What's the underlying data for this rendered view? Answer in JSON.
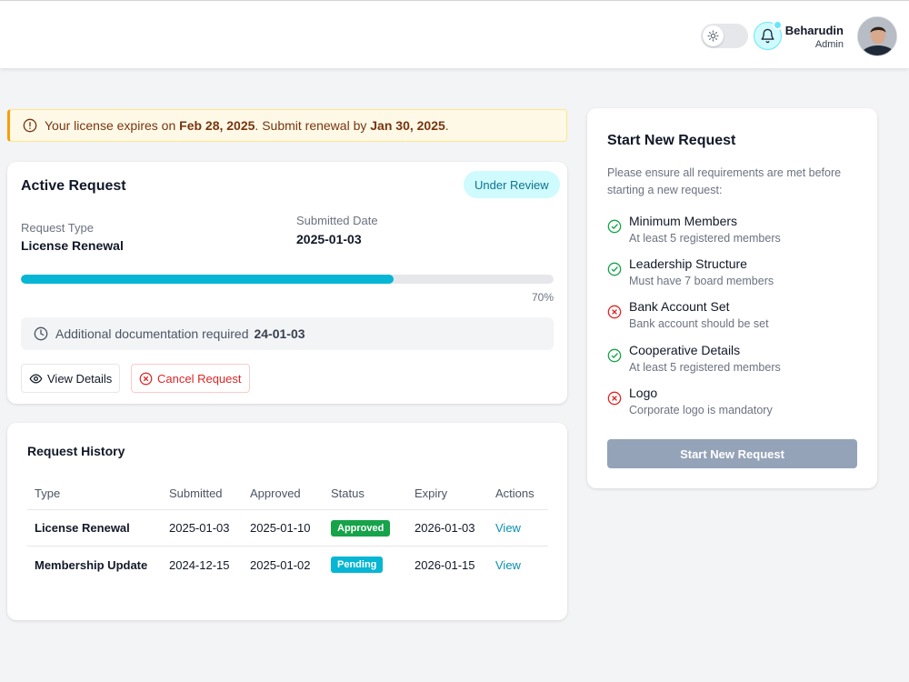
{
  "header": {
    "user_name": "Beharudin",
    "user_role": "Admin"
  },
  "alert": {
    "prefix": "Your license expires on ",
    "expiry_date": "Feb 28, 2025",
    "middle": ". Submit renewal by ",
    "renewal_date": "Jan 30, 2025",
    "suffix": "."
  },
  "active_request": {
    "title": "Active Request",
    "status": "Under Review",
    "request_type_label": "Request Type",
    "request_type": "License Renewal",
    "submitted_label": "Submitted Date",
    "submitted_date": "2025-01-03",
    "progress": 0.7,
    "progress_label": "70%",
    "note_text": "Additional documentation required",
    "note_date": "24-01-03",
    "view_details_label": "View Details",
    "cancel_label": "Cancel Request"
  },
  "history": {
    "title": "Request History",
    "columns": [
      "Type",
      "Submitted",
      "Approved",
      "Status",
      "Expiry",
      "Actions"
    ],
    "rows": [
      {
        "type": "License Renewal",
        "submitted": "2025-01-03",
        "approved": "2025-01-10",
        "status": "Approved",
        "status_color": "#16a34a",
        "expiry": "2026-01-03",
        "action": "View"
      },
      {
        "type": "Membership Update",
        "submitted": "2024-12-15",
        "approved": "2025-01-02",
        "status": "Pending",
        "status_color": "#06b6d4",
        "expiry": "2026-01-15",
        "action": "View"
      }
    ]
  },
  "new_request": {
    "title": "Start New Request",
    "description": "Please ensure all requirements are met before starting a new request:",
    "requirements": [
      {
        "title": "Minimum Members",
        "subtitle": "At least 5 registered members",
        "met": true
      },
      {
        "title": "Leadership Structure",
        "subtitle": "Must have 7 board members",
        "met": true
      },
      {
        "title": "Bank Account Set",
        "subtitle": "Bank account should be set",
        "met": false
      },
      {
        "title": "Cooperative Details",
        "subtitle": "At least 5 registered members",
        "met": true
      },
      {
        "title": "Logo",
        "subtitle": "Corporate logo is mandatory",
        "met": false
      }
    ],
    "button_label": "Start New Request"
  },
  "colors": {
    "accent": "#06b6d4",
    "met": "#16a34a",
    "unmet": "#dc2626",
    "disabled_button": "#94a3b8"
  }
}
